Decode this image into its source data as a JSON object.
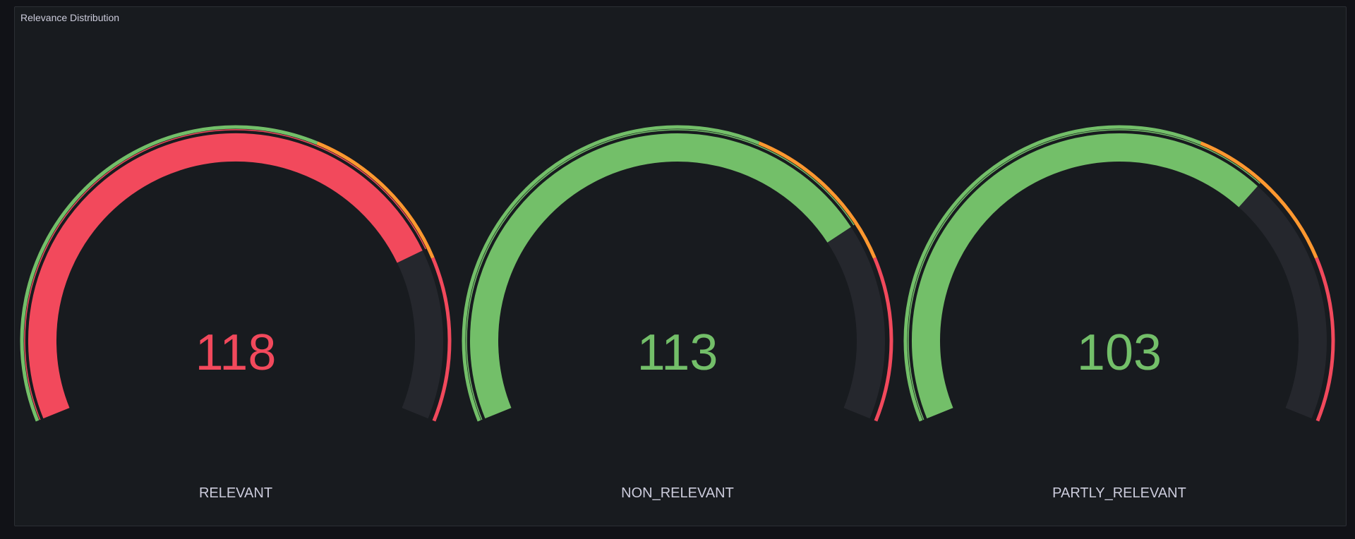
{
  "panel": {
    "title": "Relevance Distribution"
  },
  "gauge_config": {
    "min": 0,
    "max": 150,
    "thresholds": [
      {
        "from": 0,
        "to": 90,
        "color": "#73bf69"
      },
      {
        "from": 90,
        "to": 120,
        "color": "#ff9830"
      },
      {
        "from": 120,
        "to": 150,
        "color": "#f2495c"
      }
    ],
    "track_color": "#25272d"
  },
  "gauges": [
    {
      "label": "RELEVANT",
      "value": 118,
      "value_text": "118",
      "color": "#f2495c"
    },
    {
      "label": "NON_RELEVANT",
      "value": 113,
      "value_text": "113",
      "color": "#73bf69"
    },
    {
      "label": "PARTLY_RELEVANT",
      "value": 103,
      "value_text": "103",
      "color": "#73bf69"
    }
  ]
}
